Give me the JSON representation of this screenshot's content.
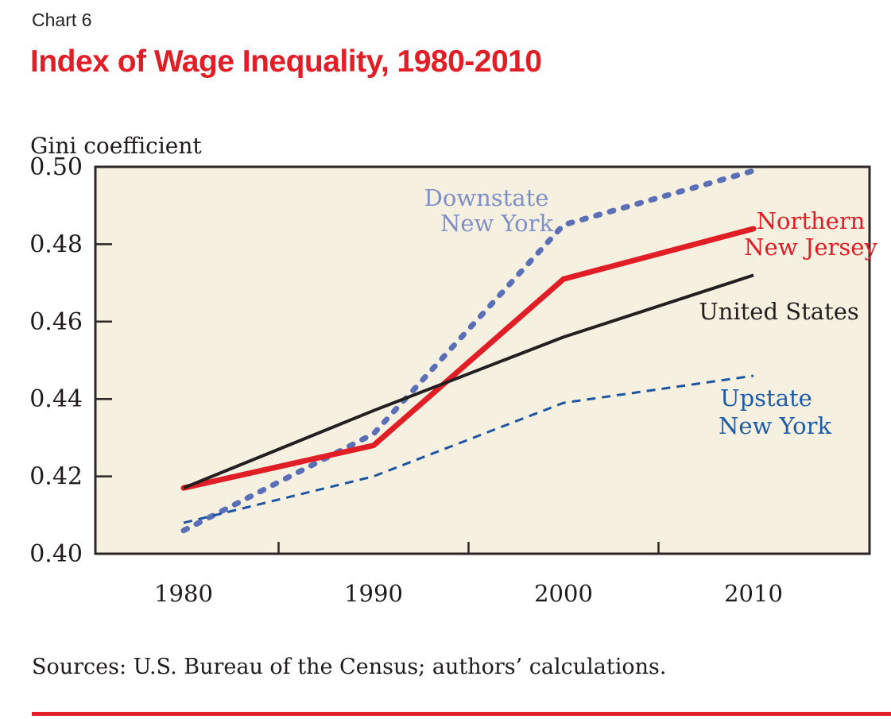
{
  "page": {
    "kicker": "Chart 6",
    "title": "Index of Wage Inequality, 1980-2010",
    "sources": "Sources: U.S. Bureau of the Census; authors’ calculations.",
    "accent_red": "#e11e26"
  },
  "chart_data": {
    "type": "line",
    "title": "Index of Wage Inequality, 1980-2010",
    "ylabel": "Gini coefficient",
    "xlabel": "",
    "x": [
      1980,
      1990,
      2000,
      2010
    ],
    "x_tick_labels": [
      "1980",
      "1990",
      "2000",
      "2010"
    ],
    "x_minor_ticks": [
      1985,
      1995,
      2005
    ],
    "xlim": [
      1975.4,
      2016.1
    ],
    "ylim": [
      0.4,
      0.5
    ],
    "y_tick_labels": [
      "0.50",
      "0.48",
      "0.46",
      "0.44",
      "0.42",
      "0.40"
    ],
    "y_tick_values": [
      0.5,
      0.48,
      0.46,
      0.44,
      0.42,
      0.4
    ],
    "y_inner_tick_values": [
      0.48,
      0.46,
      0.44,
      0.42
    ],
    "grid": false,
    "legend_position": "inline-labels",
    "plot_bg": "#f6f0e1",
    "axis_color": "#2b2627",
    "series": [
      {
        "name": "Downstate New York",
        "values": [
          0.406,
          0.431,
          0.485,
          0.499
        ],
        "color": "#5a6fb6",
        "style": "dashed-thick",
        "stroke_width": 7,
        "label": {
          "lines": [
            "Downstate",
            "New York"
          ],
          "color": "#8090c6",
          "x": [
            612,
            625
          ],
          "y": [
            259,
            291
          ]
        }
      },
      {
        "name": "Northern New Jersey",
        "values": [
          0.417,
          0.428,
          0.471,
          0.484
        ],
        "color": "#e11e26",
        "style": "solid",
        "stroke_width": 7,
        "label": {
          "lines": [
            "Northern",
            "New Jersey"
          ],
          "color": "#e11e26",
          "x": [
            1020,
            1020
          ],
          "y": [
            288,
            321
          ]
        }
      },
      {
        "name": "United States",
        "values": [
          0.417,
          0.437,
          0.456,
          0.472
        ],
        "color": "#231f20",
        "style": "solid",
        "stroke_width": 4,
        "label": {
          "lines": [
            "United States"
          ],
          "color": "#231f20",
          "x": [
            980
          ],
          "y": [
            402
          ]
        }
      },
      {
        "name": "Upstate New York",
        "values": [
          0.408,
          0.42,
          0.439,
          0.446
        ],
        "color": "#1e55a0",
        "style": "dashed-thin",
        "stroke_width": 3,
        "label": {
          "lines": [
            "Upstate",
            "New York"
          ],
          "color": "#1d5ba8",
          "x": [
            964,
            975
          ],
          "y": [
            511,
            546
          ]
        }
      }
    ]
  }
}
